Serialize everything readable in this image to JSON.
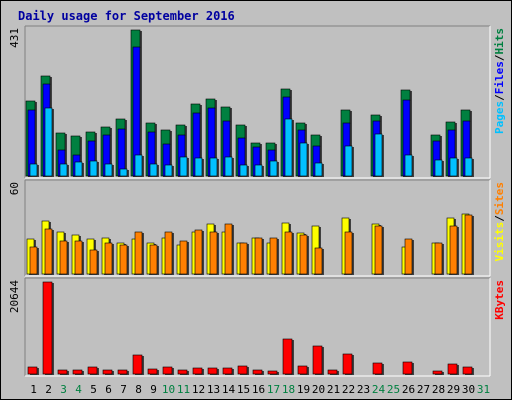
{
  "chart_data": {
    "type": "bar",
    "title": "Daily usage for September 2016",
    "days": [
      1,
      2,
      3,
      4,
      5,
      6,
      7,
      8,
      9,
      10,
      11,
      12,
      13,
      14,
      15,
      16,
      17,
      18,
      19,
      20,
      21,
      22,
      23,
      24,
      25,
      26,
      27,
      28,
      29,
      30,
      31
    ],
    "weekend_days": [
      3,
      4,
      10,
      11,
      17,
      18,
      24,
      25,
      31
    ],
    "colors": {
      "frame_bg": "#c0c0c0",
      "plot_bg": "#c0c0c0",
      "title": "#0000a0",
      "hits": "#008040",
      "files": "#0000ff",
      "pages": "#00c0ff",
      "visits": "#ffff00",
      "sites": "#ff8000",
      "kbytes": "#ff0000",
      "weekday_label": "#000000",
      "weekend_label": "#008040"
    },
    "panels": [
      {
        "id": "top",
        "ymax_label": "431",
        "ymax": 431,
        "legend": [
          {
            "label": "Hits",
            "color": "#008040"
          },
          {
            "label": "Files",
            "color": "#0000ff"
          },
          {
            "label": "Pages",
            "color": "#00c0ff"
          }
        ],
        "series": [
          {
            "name": "Hits",
            "values": [
              220,
              295,
              127,
              119,
              129,
              144,
              167,
              431,
              155,
              135,
              152,
              212,
              228,
              205,
              150,
              98,
              98,
              258,
              155,
              120,
              0,
              195,
              0,
              181,
              0,
              255,
              0,
              120,
              160,
              195,
              0
            ]
          },
          {
            "name": "Files",
            "values": [
              195,
              271,
              78,
              62,
              103,
              121,
              140,
              382,
              129,
              95,
              120,
              185,
              202,
              161,
              112,
              85,
              78,
              234,
              135,
              90,
              0,
              157,
              0,
              162,
              0,
              223,
              0,
              102,
              135,
              163,
              0
            ]
          },
          {
            "name": "Pages",
            "values": [
              35,
              202,
              35,
              40,
              45,
              36,
              20,
              62,
              35,
              32,
              55,
              53,
              53,
              55,
              32,
              33,
              44,
              168,
              97,
              37,
              0,
              88,
              0,
              123,
              0,
              62,
              0,
              47,
              53,
              53,
              0
            ]
          }
        ]
      },
      {
        "id": "middle",
        "ymax_label": "60",
        "ymax": 60,
        "legend": [
          {
            "label": "Sites",
            "color": "#ff8000"
          },
          {
            "label": "Visits",
            "color": "#ffff00"
          }
        ],
        "series": [
          {
            "name": "Visits",
            "values": [
              23,
              35,
              28,
              26,
              23,
              24,
              21,
              23,
              21,
              24,
              19,
              28,
              33,
              28,
              21,
              24,
              21,
              34,
              27,
              32,
              0,
              37,
              0,
              33,
              0,
              18,
              0,
              21,
              37,
              40,
              0
            ]
          },
          {
            "name": "Sites",
            "values": [
              18,
              30,
              22,
              22,
              16,
              21,
              19,
              28,
              19,
              28,
              22,
              29,
              28,
              33,
              21,
              24,
              24,
              28,
              26,
              17,
              0,
              28,
              0,
              32,
              0,
              23,
              0,
              21,
              32,
              39,
              0
            ]
          }
        ]
      },
      {
        "id": "bottom",
        "ymax_label": "20644",
        "ymax": 20644,
        "legend": [
          {
            "label": "KBytes",
            "color": "#ff0000"
          }
        ],
        "series": [
          {
            "name": "KBytes",
            "values": [
              1600,
              20644,
              1000,
              900,
              1500,
              1000,
              1000,
              4300,
              1100,
              1600,
              1000,
              1300,
              1400,
              1300,
              1700,
              800,
              700,
              7900,
              1800,
              6200,
              800,
              4600,
              0,
              2400,
              0,
              2600,
              0,
              600,
              2200,
              1500,
              0
            ]
          }
        ]
      }
    ]
  }
}
